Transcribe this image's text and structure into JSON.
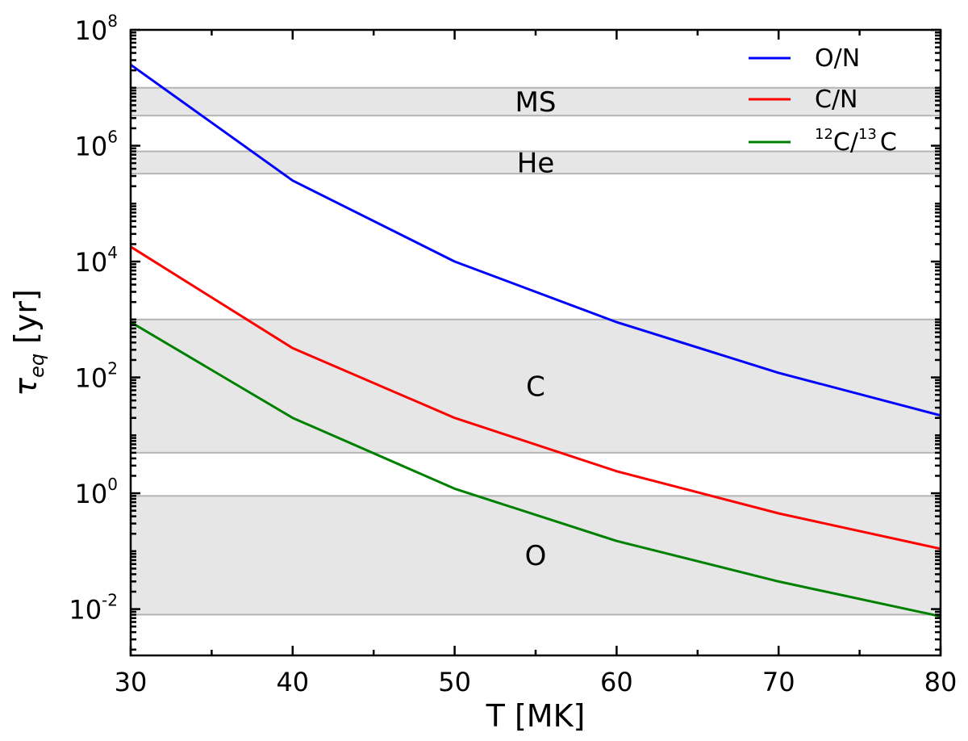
{
  "chart_data": {
    "type": "line",
    "title": "",
    "xlabel": "T [MK]",
    "ylabel_symbol": "τ",
    "ylabel_subscript": "eq",
    "ylabel_unit": "[yr]",
    "xlim": [
      30,
      80
    ],
    "ylim_log10": [
      -2.8,
      8
    ],
    "yscale": "log",
    "x_ticks": [
      30,
      40,
      50,
      60,
      70,
      80
    ],
    "y_tick_exponents": [
      -2,
      0,
      2,
      4,
      6,
      8
    ],
    "y_tick_base": "10",
    "grid": false,
    "legend_position": "top-right",
    "x": [
      30,
      40,
      50,
      60,
      70,
      80
    ],
    "series": [
      {
        "name": "O/N",
        "color": "#0000ff",
        "values": [
          25000000,
          250000,
          10000,
          900,
          120,
          22
        ]
      },
      {
        "name": "C/N",
        "color": "#ff0000",
        "values": [
          18000,
          320,
          20,
          2.4,
          0.45,
          0.11
        ]
      },
      {
        "name_parts": {
          "sup1": "12",
          "mid": "C/",
          "sup2": "13",
          "end": "C"
        },
        "name": "12C/13C",
        "color": "#008000",
        "values": [
          900,
          20,
          1.2,
          0.15,
          0.03,
          0.0075
        ]
      }
    ],
    "bands": [
      {
        "label": "MS",
        "range": [
          3300000,
          10000000
        ],
        "label_x": 55
      },
      {
        "label": "He",
        "range": [
          330000,
          800000
        ],
        "label_x": 55
      },
      {
        "label": "C",
        "range": [
          5,
          1000
        ],
        "label_x": 55
      },
      {
        "label": "O",
        "range": [
          0.008,
          0.9
        ],
        "label_x": 55
      }
    ]
  }
}
